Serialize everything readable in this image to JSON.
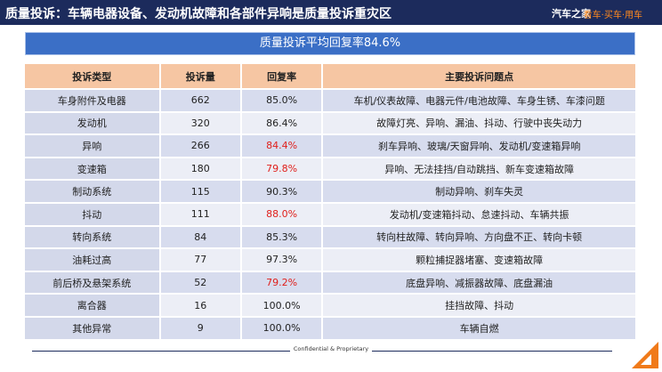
{
  "header": {
    "title": "质量投诉：车辆电器设备、发动机故障和各部件异响是质量投诉重灾区",
    "logo": "汽车之家",
    "slogan": "看车·买车·用车"
  },
  "banner": "质量投诉平均回复率84.6%",
  "table": {
    "columns": [
      "投诉类型",
      "投诉量",
      "回复率",
      "主要投诉问题点"
    ],
    "rows": [
      [
        "车身附件及电器",
        "662",
        "85.0%",
        "车机/仪表故障、电器元件/电池故障、车身生锈、车漆问题"
      ],
      [
        "发动机",
        "320",
        "86.4%",
        "故障灯亮、异响、漏油、抖动、行驶中丧失动力"
      ],
      [
        "异响",
        "266",
        "84.4%",
        "刹车异响、玻璃/天窗异响、发动机/变速箱异响"
      ],
      [
        "变速箱",
        "180",
        "79.8%",
        "异响、无法挂挡/自动跳挡、新车变速箱故障"
      ],
      [
        "制动系统",
        "115",
        "90.3%",
        "制动异响、刹车失灵"
      ],
      [
        "抖动",
        "111",
        "88.0%",
        "发动机/变速箱抖动、怠速抖动、车辆共振"
      ],
      [
        "转向系统",
        "84",
        "85.3%",
        "转向柱故障、转向异响、方向盘不正、转向卡顿"
      ],
      [
        "油耗过高",
        "77",
        "97.3%",
        "颗粒捕捉器堵塞、变速箱故障"
      ],
      [
        "前后桥及悬架系统",
        "52",
        "79.2%",
        "底盘异响、减振器故障、底盘漏油"
      ],
      [
        "离合器",
        "16",
        "100.0%",
        "挂挡故障、抖动"
      ],
      [
        "其他异常",
        "9",
        "100.0%",
        "车辆自燃"
      ]
    ],
    "rate_colors": [
      "#222222",
      "#222222",
      "#e0201c",
      "#e0201c",
      "#222222",
      "#e0201c",
      "#222222",
      "#222222",
      "#e0201c",
      "#222222",
      "#222222"
    ]
  },
  "footer": "Confidential & Proprietary"
}
